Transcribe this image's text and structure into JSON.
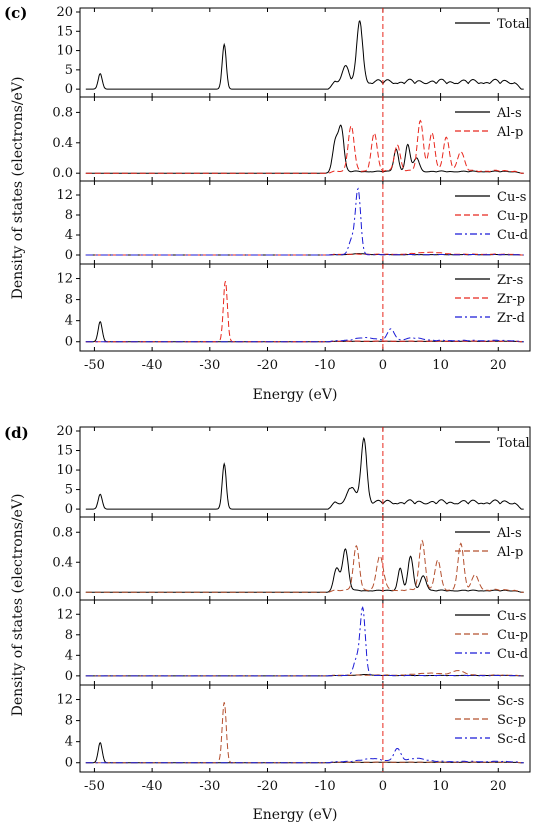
{
  "x_axis": {
    "label": "Energy (eV)",
    "ticks": [
      "-50",
      "-40",
      "-30",
      "-20",
      "-10",
      "0",
      "10",
      "20"
    ],
    "range": [
      -52.5,
      25.5
    ]
  },
  "y_axis_label": "Density of states (electrons/eV)",
  "fermi_level": 0,
  "colors": {
    "black": "#000000",
    "red": "#e8271d",
    "blue": "#1b1bd6",
    "brown": "#b4502f"
  },
  "chart_data": [
    {
      "panel": "(c)",
      "type": "line",
      "xlabel": "Energy (eV)",
      "ylabel": "Density of states (electrons/eV)",
      "subplots": [
        {
          "name": "total",
          "ylim": [
            -1,
            20
          ],
          "yticks": [
            "0",
            "5",
            "10",
            "15",
            "20"
          ],
          "series": [
            {
              "name": "Total",
              "color": "black",
              "style": "solid",
              "peaks": [
                [
                  -49,
                  4,
                  0.35
                ],
                [
                  -27.5,
                  11.6,
                  0.35
                ],
                [
                  -4.0,
                  15.8,
                  0.5
                ],
                [
                  -6.5,
                  4,
                  0.6
                ]
              ],
              "band": {
                "from": -9.5,
                "to": 24,
                "level": 2.6
              }
            }
          ]
        },
        {
          "name": "al",
          "ylim": [
            -0.05,
            0.95
          ],
          "yticks": [
            "0.0",
            "0.4",
            "0.8"
          ],
          "series": [
            {
              "name": "Al-s",
              "color": "black",
              "style": "solid",
              "peaks": [
                [
                  -8.2,
                  0.4,
                  0.5
                ],
                [
                  -7.2,
                  0.55,
                  0.45
                ],
                [
                  2.3,
                  0.3,
                  0.4
                ],
                [
                  4.3,
                  0.35,
                  0.4
                ],
                [
                  5.8,
                  0.18,
                  0.5
                ]
              ],
              "band": {
                "from": -9.5,
                "to": 24,
                "level": 0.03
              }
            },
            {
              "name": "Al-p",
              "color": "red",
              "style": "dashed",
              "peaks": [
                [
                  -5.5,
                  0.6,
                  0.5
                ],
                [
                  -1.5,
                  0.5,
                  0.5
                ],
                [
                  2.5,
                  0.35,
                  0.5
                ],
                [
                  6.5,
                  0.66,
                  0.5
                ],
                [
                  8.5,
                  0.5,
                  0.5
                ],
                [
                  11.0,
                  0.45,
                  0.5
                ],
                [
                  13.5,
                  0.25,
                  0.6
                ]
              ],
              "band": {
                "from": -9.5,
                "to": 24,
                "level": 0.04
              }
            }
          ]
        },
        {
          "name": "cu",
          "ylim": [
            -1,
            14
          ],
          "yticks": [
            "0",
            "4",
            "8",
            "12"
          ],
          "series": [
            {
              "name": "Cu-s",
              "color": "black",
              "style": "solid",
              "peaks": [
                [
                  -4,
                  0.2,
                  1.0
                ]
              ],
              "band": {
                "from": -9.5,
                "to": 24,
                "level": 0.1
              }
            },
            {
              "name": "Cu-p",
              "color": "red",
              "style": "dashed",
              "peaks": [
                [
                  8,
                  0.4,
                  2.0
                ]
              ],
              "band": {
                "from": -9.5,
                "to": 24,
                "level": 0.2
              }
            },
            {
              "name": "Cu-d",
              "color": "blue",
              "style": "dashdot",
              "peaks": [
                [
                  -4.3,
                  12.9,
                  0.45
                ],
                [
                  -5.4,
                  3,
                  0.5
                ]
              ],
              "band": {
                "from": -9.5,
                "to": 24,
                "level": 0.1
              }
            }
          ]
        },
        {
          "name": "zr",
          "ylim": [
            -1,
            14
          ],
          "yticks": [
            "0",
            "4",
            "8",
            "12"
          ],
          "series": [
            {
              "name": "Zr-s",
              "color": "black",
              "style": "solid",
              "peaks": [
                [
                  -49,
                  3.8,
                  0.35
                ]
              ],
              "band": {
                "from": -9.5,
                "to": 24,
                "level": 0.1
              }
            },
            {
              "name": "Zr-p",
              "color": "red",
              "style": "dashed",
              "peaks": [
                [
                  -27.3,
                  11.5,
                  0.35
                ]
              ],
              "band": {
                "from": -9.5,
                "to": 24,
                "level": 0.15
              }
            },
            {
              "name": "Zr-d",
              "color": "blue",
              "style": "dashdot",
              "peaks": [
                [
                  1.4,
                  2.2,
                  0.6
                ],
                [
                  -3,
                  0.6,
                  1.5
                ],
                [
                  5.5,
                  0.5,
                  1.5
                ]
              ],
              "band": {
                "from": -9.5,
                "to": 24,
                "level": 0.3
              }
            }
          ]
        }
      ]
    },
    {
      "panel": "(d)",
      "type": "line",
      "xlabel": "Energy (eV)",
      "ylabel": "Density of states (electrons/eV)",
      "subplots": [
        {
          "name": "total",
          "ylim": [
            -1,
            20
          ],
          "yticks": [
            "0",
            "5",
            "10",
            "15",
            "20"
          ],
          "series": [
            {
              "name": "Total",
              "color": "black",
              "style": "solid",
              "peaks": [
                [
                  -49,
                  3.8,
                  0.35
                ],
                [
                  -27.5,
                  11.6,
                  0.35
                ],
                [
                  -3.3,
                  16.5,
                  0.5
                ],
                [
                  -5.5,
                  4,
                  0.6
                ]
              ],
              "band": {
                "from": -9.5,
                "to": 24,
                "level": 2.4
              }
            }
          ]
        },
        {
          "name": "al",
          "ylim": [
            -0.05,
            0.95
          ],
          "yticks": [
            "0.0",
            "0.4",
            "0.8"
          ],
          "series": [
            {
              "name": "Al-s",
              "color": "black",
              "style": "solid",
              "peaks": [
                [
                  -6.5,
                  0.55,
                  0.5
                ],
                [
                  -8.0,
                  0.3,
                  0.5
                ],
                [
                  4.8,
                  0.45,
                  0.45
                ],
                [
                  3.0,
                  0.3,
                  0.4
                ],
                [
                  7.0,
                  0.2,
                  0.5
                ]
              ],
              "band": {
                "from": -9.5,
                "to": 24,
                "level": 0.03
              }
            },
            {
              "name": "Al-p",
              "color": "brown",
              "style": "dashed",
              "peaks": [
                [
                  -4.6,
                  0.58,
                  0.5
                ],
                [
                  -0.5,
                  0.45,
                  0.6
                ],
                [
                  6.8,
                  0.66,
                  0.5
                ],
                [
                  9.5,
                  0.4,
                  0.5
                ],
                [
                  13.5,
                  0.62,
                  0.5
                ],
                [
                  16.0,
                  0.2,
                  0.6
                ]
              ],
              "band": {
                "from": -9.5,
                "to": 24,
                "level": 0.04
              }
            }
          ]
        },
        {
          "name": "cu",
          "ylim": [
            -1,
            14
          ],
          "yticks": [
            "0",
            "4",
            "8",
            "12"
          ],
          "series": [
            {
              "name": "Cu-s",
              "color": "black",
              "style": "solid",
              "peaks": [
                [
                  -3,
                  0.2,
                  1.0
                ]
              ],
              "band": {
                "from": -9.5,
                "to": 24,
                "level": 0.1
              }
            },
            {
              "name": "Cu-p",
              "color": "brown",
              "style": "dashed",
              "peaks": [
                [
                  13,
                  0.9,
                  1.0
                ],
                [
                  8,
                  0.4,
                  2.0
                ]
              ],
              "band": {
                "from": -9.5,
                "to": 24,
                "level": 0.2
              }
            },
            {
              "name": "Cu-d",
              "color": "blue",
              "style": "dashdot",
              "peaks": [
                [
                  -3.5,
                  13.0,
                  0.45
                ],
                [
                  -4.6,
                  3,
                  0.5
                ]
              ],
              "band": {
                "from": -9.5,
                "to": 24,
                "level": 0.1
              }
            }
          ]
        },
        {
          "name": "sc",
          "ylim": [
            -1,
            14
          ],
          "yticks": [
            "0",
            "4",
            "8",
            "12"
          ],
          "series": [
            {
              "name": "Sc-s",
              "color": "black",
              "style": "solid",
              "peaks": [
                [
                  -49,
                  3.8,
                  0.35
                ]
              ],
              "band": {
                "from": -9.5,
                "to": 24,
                "level": 0.1
              }
            },
            {
              "name": "Sc-p",
              "color": "brown",
              "style": "dashed",
              "peaks": [
                [
                  -27.5,
                  11.5,
                  0.35
                ]
              ],
              "band": {
                "from": -9.5,
                "to": 24,
                "level": 0.15
              }
            },
            {
              "name": "Sc-d",
              "color": "blue",
              "style": "dashdot",
              "peaks": [
                [
                  2.5,
                  2.5,
                  0.6
                ],
                [
                  -2,
                  0.6,
                  1.5
                ],
                [
                  6,
                  0.6,
                  1.5
                ]
              ],
              "band": {
                "from": -9.5,
                "to": 24,
                "level": 0.3
              }
            }
          ]
        }
      ]
    }
  ]
}
